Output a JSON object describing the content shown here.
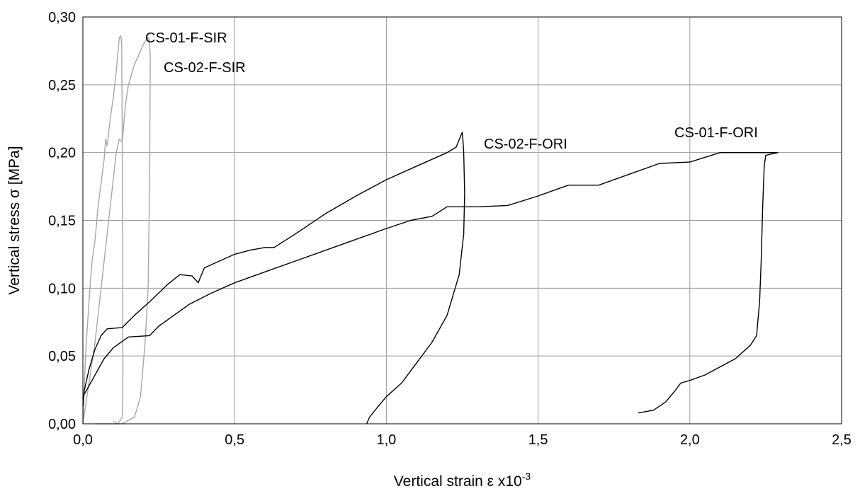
{
  "chart_data": {
    "type": "line",
    "title": "",
    "xlabel": {
      "text": "Vertical strain ε x10",
      "sup": "-3"
    },
    "ylabel": "Vertical stress σ [MPa]",
    "xlim": [
      0.0,
      2.5
    ],
    "ylim": [
      0.0,
      0.3
    ],
    "x_ticks": [
      0.0,
      0.5,
      1.0,
      1.5,
      2.0,
      2.5
    ],
    "x_tick_labels": [
      "0,0",
      "0,5",
      "1,0",
      "1,5",
      "2,0",
      "2,5"
    ],
    "y_ticks": [
      0.0,
      0.05,
      0.1,
      0.15,
      0.2,
      0.25,
      0.3
    ],
    "y_tick_labels": [
      "0,00",
      "0,05",
      "0,10",
      "0,15",
      "0,20",
      "0,25",
      "0,30"
    ],
    "grid": true,
    "legend": "none (series labelled directly on plot)",
    "colors": {
      "grey_series": "#a6a6a6",
      "black_series": "#000000",
      "grid": "#9a9a9a"
    },
    "series": [
      {
        "name": "CS-01-F-SIR",
        "color": "#a6a6a6",
        "points": [
          [
            0.0,
            0.0
          ],
          [
            0.005,
            0.03
          ],
          [
            0.01,
            0.055
          ],
          [
            0.02,
            0.09
          ],
          [
            0.03,
            0.12
          ],
          [
            0.04,
            0.135
          ],
          [
            0.05,
            0.16
          ],
          [
            0.07,
            0.195
          ],
          [
            0.075,
            0.21
          ],
          [
            0.08,
            0.205
          ],
          [
            0.09,
            0.225
          ],
          [
            0.1,
            0.24
          ],
          [
            0.11,
            0.26
          ],
          [
            0.12,
            0.285
          ],
          [
            0.125,
            0.286
          ],
          [
            0.128,
            0.28
          ],
          [
            0.13,
            0.2
          ],
          [
            0.131,
            0.1
          ],
          [
            0.132,
            0.04
          ],
          [
            0.13,
            0.005
          ],
          [
            0.115,
            0.0
          ],
          [
            0.1,
            0.002
          ]
        ]
      },
      {
        "name": "CS-02-F-SIR",
        "color": "#a6a6a6",
        "points": [
          [
            0.0,
            0.0
          ],
          [
            0.02,
            0.03
          ],
          [
            0.04,
            0.06
          ],
          [
            0.06,
            0.1
          ],
          [
            0.08,
            0.14
          ],
          [
            0.1,
            0.18
          ],
          [
            0.11,
            0.2
          ],
          [
            0.12,
            0.21
          ],
          [
            0.13,
            0.208
          ],
          [
            0.14,
            0.235
          ],
          [
            0.15,
            0.25
          ],
          [
            0.17,
            0.265
          ],
          [
            0.2,
            0.28
          ],
          [
            0.215,
            0.285
          ],
          [
            0.22,
            0.283
          ],
          [
            0.222,
            0.27
          ],
          [
            0.22,
            0.18
          ],
          [
            0.215,
            0.1
          ],
          [
            0.205,
            0.06
          ],
          [
            0.19,
            0.02
          ],
          [
            0.17,
            0.005
          ],
          [
            0.13,
            0.0
          ],
          [
            0.07,
            0.0
          ],
          [
            0.04,
            0.0
          ]
        ]
      },
      {
        "name": "CS-02-F-ORI",
        "color": "#000000",
        "points": [
          [
            0.0,
            0.013
          ],
          [
            0.005,
            0.025
          ],
          [
            0.02,
            0.04
          ],
          [
            0.04,
            0.055
          ],
          [
            0.06,
            0.065
          ],
          [
            0.08,
            0.07
          ],
          [
            0.13,
            0.071
          ],
          [
            0.17,
            0.08
          ],
          [
            0.22,
            0.09
          ],
          [
            0.28,
            0.103
          ],
          [
            0.32,
            0.11
          ],
          [
            0.36,
            0.109
          ],
          [
            0.38,
            0.104
          ],
          [
            0.4,
            0.115
          ],
          [
            0.45,
            0.12
          ],
          [
            0.5,
            0.125
          ],
          [
            0.55,
            0.128
          ],
          [
            0.6,
            0.13
          ],
          [
            0.63,
            0.13
          ],
          [
            0.7,
            0.14
          ],
          [
            0.8,
            0.155
          ],
          [
            0.9,
            0.168
          ],
          [
            1.0,
            0.18
          ],
          [
            1.1,
            0.19
          ],
          [
            1.2,
            0.2
          ],
          [
            1.23,
            0.204
          ],
          [
            1.25,
            0.215
          ],
          [
            1.252,
            0.21
          ],
          [
            1.255,
            0.2
          ],
          [
            1.258,
            0.17
          ],
          [
            1.255,
            0.14
          ],
          [
            1.24,
            0.11
          ],
          [
            1.2,
            0.08
          ],
          [
            1.15,
            0.06
          ],
          [
            1.1,
            0.045
          ],
          [
            1.05,
            0.03
          ],
          [
            1.0,
            0.02
          ],
          [
            0.97,
            0.012
          ],
          [
            0.945,
            0.005
          ],
          [
            0.935,
            0.0
          ]
        ]
      },
      {
        "name": "CS-01-F-ORI",
        "color": "#000000",
        "points": [
          [
            0.0,
            0.02
          ],
          [
            0.01,
            0.024
          ],
          [
            0.03,
            0.032
          ],
          [
            0.05,
            0.04
          ],
          [
            0.07,
            0.048
          ],
          [
            0.1,
            0.056
          ],
          [
            0.15,
            0.064
          ],
          [
            0.22,
            0.065
          ],
          [
            0.25,
            0.072
          ],
          [
            0.3,
            0.08
          ],
          [
            0.35,
            0.088
          ],
          [
            0.42,
            0.096
          ],
          [
            0.5,
            0.104
          ],
          [
            0.6,
            0.112
          ],
          [
            0.7,
            0.12
          ],
          [
            0.8,
            0.128
          ],
          [
            0.9,
            0.136
          ],
          [
            1.0,
            0.144
          ],
          [
            1.08,
            0.15
          ],
          [
            1.15,
            0.153
          ],
          [
            1.2,
            0.16
          ],
          [
            1.3,
            0.16
          ],
          [
            1.4,
            0.161
          ],
          [
            1.5,
            0.168
          ],
          [
            1.6,
            0.176
          ],
          [
            1.7,
            0.176
          ],
          [
            1.8,
            0.184
          ],
          [
            1.9,
            0.192
          ],
          [
            2.0,
            0.193
          ],
          [
            2.1,
            0.2
          ],
          [
            2.2,
            0.2
          ],
          [
            2.29,
            0.2
          ],
          [
            2.25,
            0.198
          ],
          [
            2.245,
            0.19
          ],
          [
            2.24,
            0.16
          ],
          [
            2.235,
            0.12
          ],
          [
            2.23,
            0.09
          ],
          [
            2.22,
            0.065
          ],
          [
            2.2,
            0.058
          ],
          [
            2.15,
            0.048
          ],
          [
            2.1,
            0.042
          ],
          [
            2.05,
            0.036
          ],
          [
            2.0,
            0.032
          ],
          [
            1.97,
            0.03
          ],
          [
            1.95,
            0.024
          ],
          [
            1.92,
            0.016
          ],
          [
            1.88,
            0.01
          ],
          [
            1.83,
            0.008
          ]
        ]
      }
    ],
    "annotations": [
      {
        "text": "CS-01-F-SIR",
        "series": "CS-01-F-SIR"
      },
      {
        "text": "CS-02-F-SIR",
        "series": "CS-02-F-SIR"
      },
      {
        "text": "CS-02-F-ORI",
        "series": "CS-02-F-ORI"
      },
      {
        "text": "CS-01-F-ORI",
        "series": "CS-01-F-ORI"
      }
    ]
  }
}
